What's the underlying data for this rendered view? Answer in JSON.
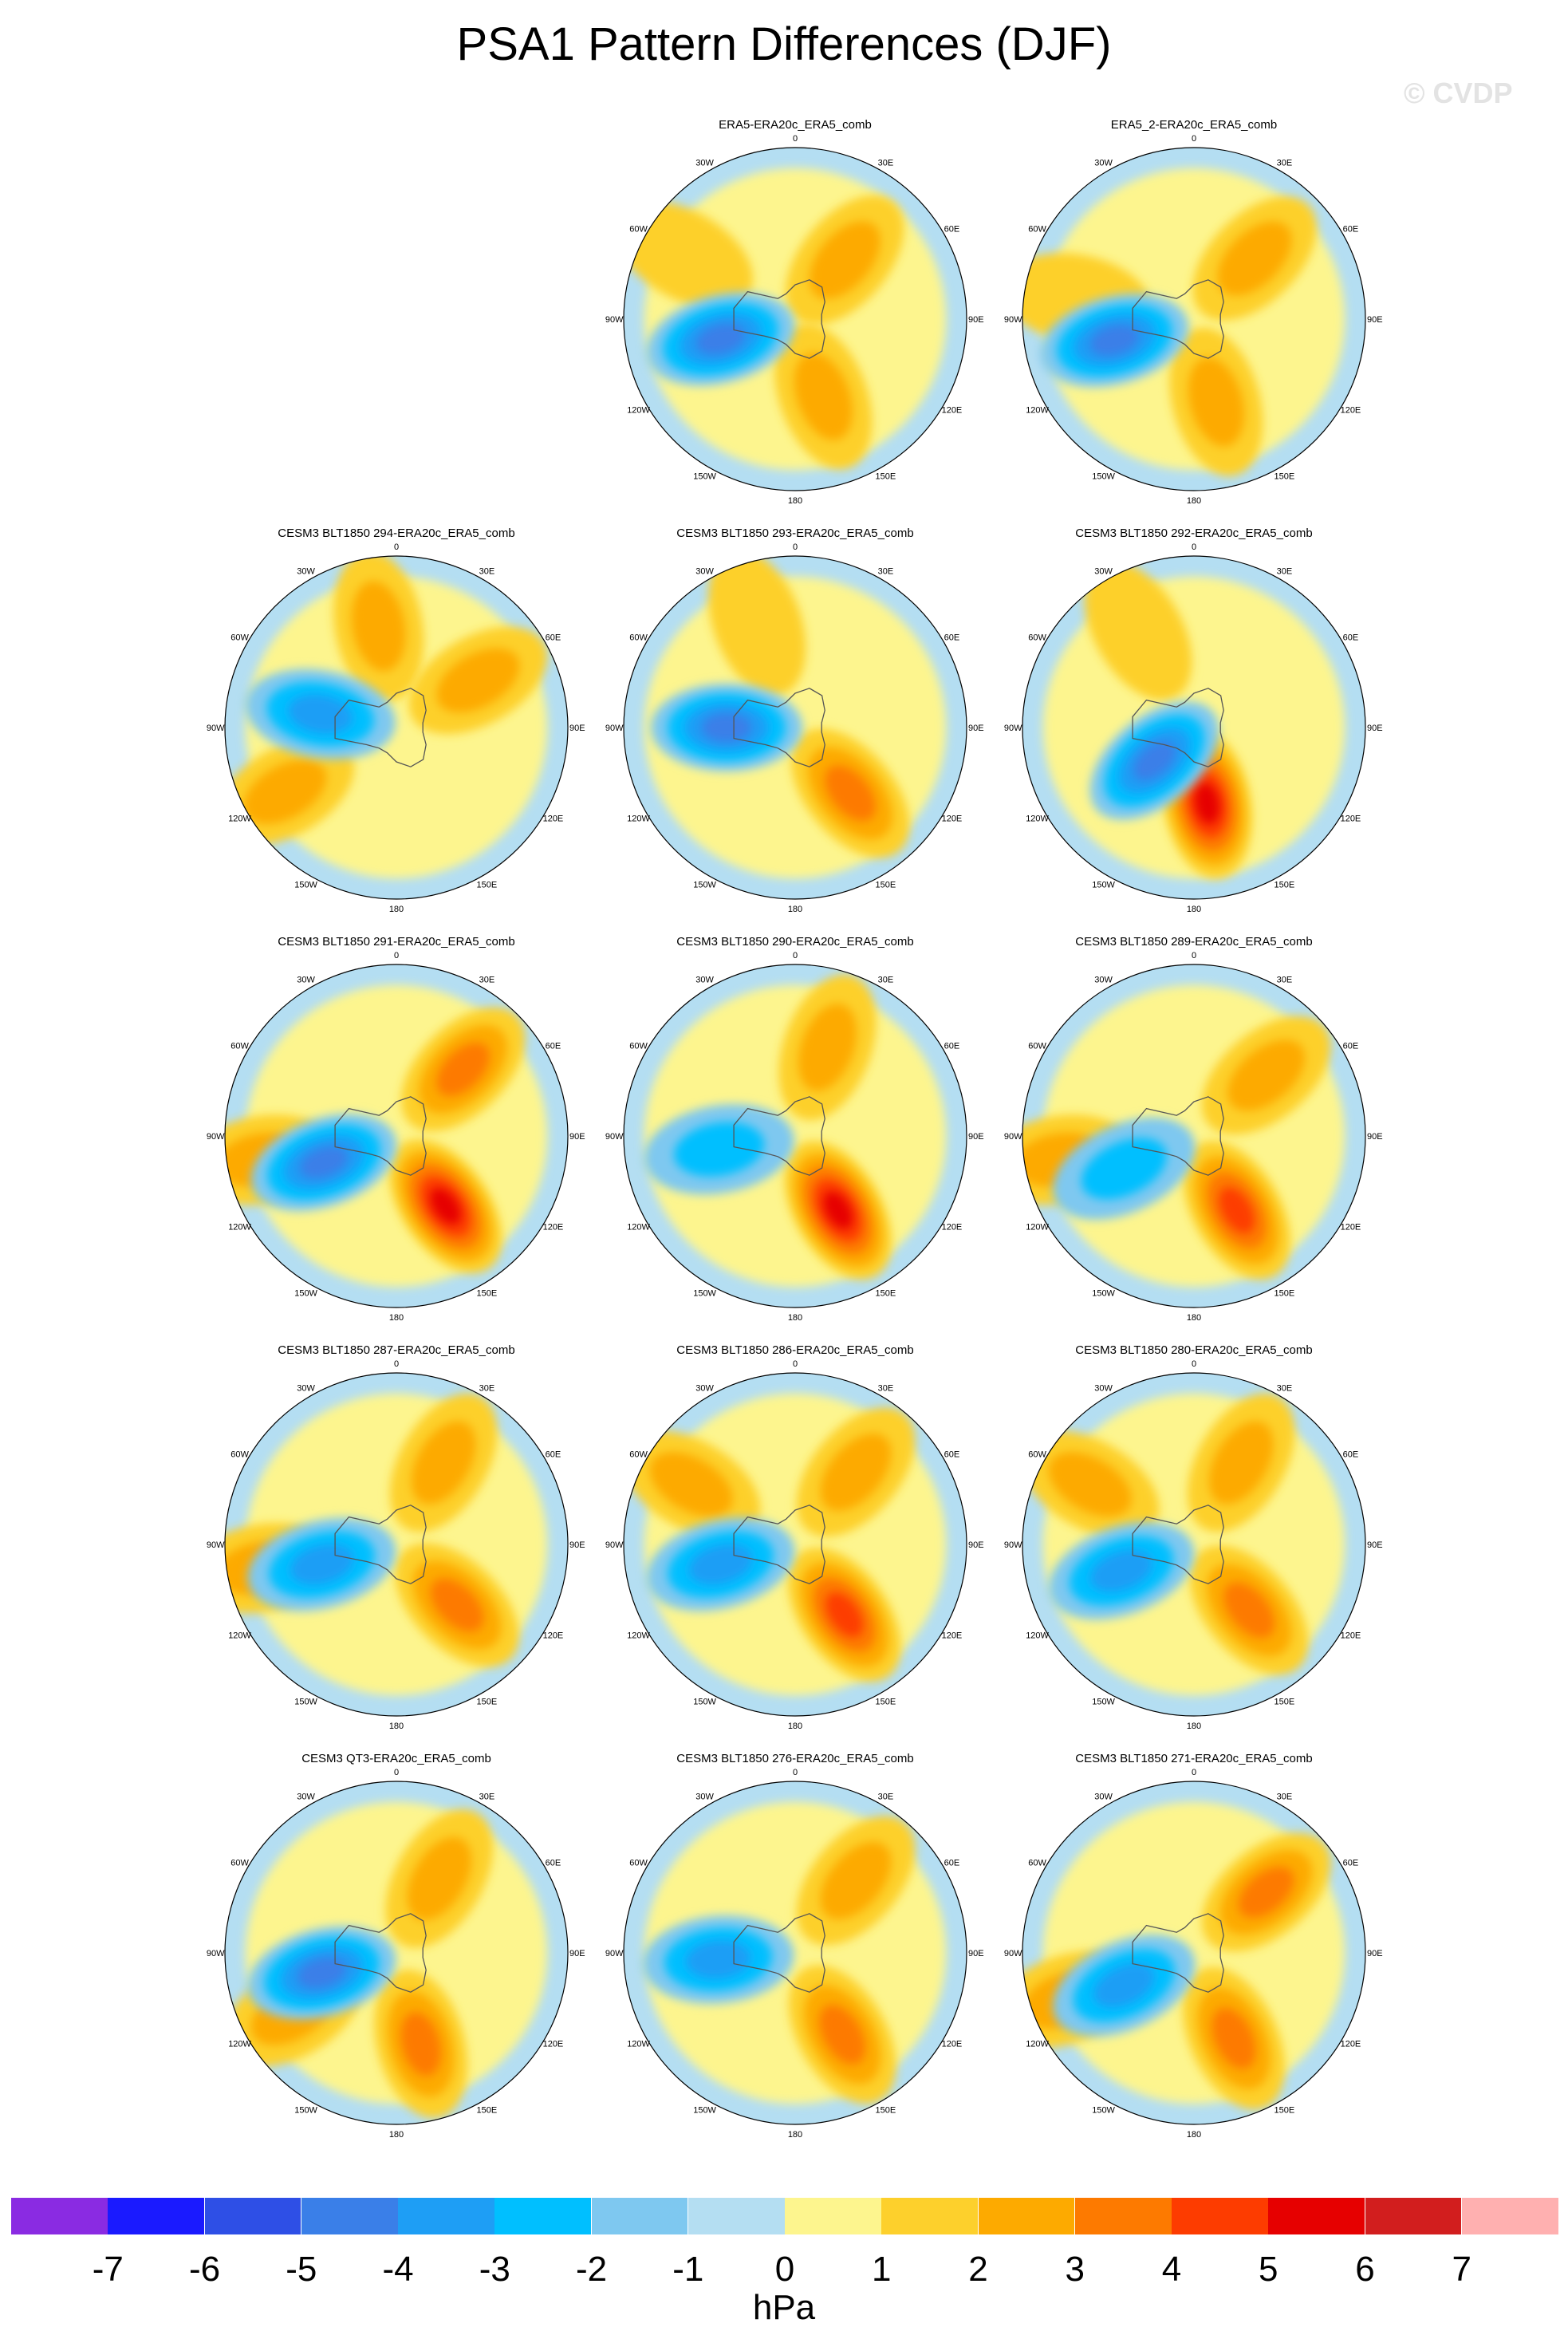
{
  "title": "PSA1 Pattern Differences (DJF)",
  "watermark": "© CVDP",
  "chart_data": {
    "type": "polar-contour-panels",
    "season": "DJF",
    "variable": "PSA1 pattern difference",
    "units": "hPa",
    "projection": "south-polar stereographic",
    "longitude_labels": [
      "0",
      "30E",
      "60E",
      "90E",
      "120E",
      "150E",
      "180",
      "150W",
      "120W",
      "90W",
      "60W",
      "30W"
    ],
    "contour_levels": [
      -7,
      -6,
      -5,
      -4,
      -3,
      -2,
      -1,
      0,
      1,
      2,
      3,
      4,
      5,
      6,
      7
    ],
    "colorbar_colors": [
      "#8a2be2",
      "#1a1aff",
      "#2e4fe6",
      "#3a7fe8",
      "#1e9ef5",
      "#00bfff",
      "#7ec8f0",
      "#b4def2",
      "#fdf58e",
      "#fdd02c",
      "#fdaa00",
      "#fd7a00",
      "#fd3c00",
      "#e60000",
      "#d21e1e",
      "#ffb0b0"
    ],
    "colorbar_tick_labels": [
      "-7",
      "-6",
      "-5",
      "-4",
      "-3",
      "-2",
      "-1",
      "0",
      "1",
      "2",
      "3",
      "4",
      "5",
      "6",
      "7"
    ],
    "panels": [
      {
        "title": "ERA5-ERA20c_ERA5_comb",
        "min_center": -4,
        "pos_anom": [
          {
            "lon": 40,
            "r": 0.45,
            "v": 2
          },
          {
            "lon": 160,
            "r": 0.48,
            "v": 2
          },
          {
            "lon": 300,
            "r": 0.75,
            "v": 1
          }
        ],
        "neg_anom": [
          {
            "lon": 255,
            "r": 0.45,
            "v": -4
          }
        ]
      },
      {
        "title": "ERA5_2-ERA20c_ERA5_comb",
        "min_center": -4,
        "pos_anom": [
          {
            "lon": 45,
            "r": 0.5,
            "v": 2
          },
          {
            "lon": 165,
            "r": 0.5,
            "v": 2
          },
          {
            "lon": 280,
            "r": 0.7,
            "v": 1
          }
        ],
        "neg_anom": [
          {
            "lon": 255,
            "r": 0.48,
            "v": -4
          }
        ]
      },
      {
        "title": "CESM3 BLT1850 294-ERA20c_ERA5_comb",
        "min_center": -3,
        "pos_anom": [
          {
            "lon": 350,
            "r": 0.6,
            "v": 2
          },
          {
            "lon": 60,
            "r": 0.55,
            "v": 2
          },
          {
            "lon": 240,
            "r": 0.75,
            "v": 2
          }
        ],
        "neg_anom": [
          {
            "lon": 280,
            "r": 0.45,
            "v": -3
          }
        ]
      },
      {
        "title": "CESM3 BLT1850 293-ERA20c_ERA5_comb",
        "min_center": -4,
        "pos_anom": [
          {
            "lon": 140,
            "r": 0.5,
            "v": 3
          },
          {
            "lon": 340,
            "r": 0.65,
            "v": 1
          }
        ],
        "neg_anom": [
          {
            "lon": 270,
            "r": 0.4,
            "v": -4
          }
        ]
      },
      {
        "title": "CESM3 BLT1850 292-ERA20c_ERA5_comb",
        "min_center": -4,
        "pos_anom": [
          {
            "lon": 170,
            "r": 0.45,
            "v": 5
          },
          {
            "lon": 330,
            "r": 0.65,
            "v": 1
          }
        ],
        "neg_anom": [
          {
            "lon": 230,
            "r": 0.3,
            "v": -4
          }
        ]
      },
      {
        "title": "CESM3 BLT1850 291-ERA20c_ERA5_comb",
        "min_center": -4,
        "pos_anom": [
          {
            "lon": 45,
            "r": 0.55,
            "v": 3
          },
          {
            "lon": 145,
            "r": 0.5,
            "v": 5
          },
          {
            "lon": 260,
            "r": 0.8,
            "v": 2
          }
        ],
        "neg_anom": [
          {
            "lon": 250,
            "r": 0.45,
            "v": -4
          }
        ]
      },
      {
        "title": "CESM3 BLT1850 290-ERA20c_ERA5_comb",
        "min_center": -2,
        "pos_anom": [
          {
            "lon": 150,
            "r": 0.5,
            "v": 5
          },
          {
            "lon": 20,
            "r": 0.55,
            "v": 2
          }
        ],
        "neg_anom": [
          {
            "lon": 260,
            "r": 0.45,
            "v": -2
          }
        ]
      },
      {
        "title": "CESM3 BLT1850 289-ERA20c_ERA5_comb",
        "min_center": -2,
        "pos_anom": [
          {
            "lon": 150,
            "r": 0.5,
            "v": 4
          },
          {
            "lon": 50,
            "r": 0.55,
            "v": 2
          },
          {
            "lon": 260,
            "r": 0.8,
            "v": 2
          }
        ],
        "neg_anom": [
          {
            "lon": 245,
            "r": 0.45,
            "v": -2
          }
        ]
      },
      {
        "title": "CESM3 BLT1850 287-ERA20c_ERA5_comb",
        "min_center": -3,
        "pos_anom": [
          {
            "lon": 135,
            "r": 0.5,
            "v": 3
          },
          {
            "lon": 30,
            "r": 0.55,
            "v": 2
          },
          {
            "lon": 260,
            "r": 0.8,
            "v": 2
          }
        ],
        "neg_anom": [
          {
            "lon": 255,
            "r": 0.45,
            "v": -3
          }
        ]
      },
      {
        "title": "CESM3 BLT1850 286-ERA20c_ERA5_comb",
        "min_center": -3,
        "pos_anom": [
          {
            "lon": 145,
            "r": 0.5,
            "v": 4
          },
          {
            "lon": 40,
            "r": 0.55,
            "v": 2
          },
          {
            "lon": 300,
            "r": 0.7,
            "v": 2
          }
        ],
        "neg_anom": [
          {
            "lon": 255,
            "r": 0.45,
            "v": -3
          }
        ]
      },
      {
        "title": "CESM3 BLT1850 280-ERA20c_ERA5_comb",
        "min_center": -3,
        "pos_anom": [
          {
            "lon": 140,
            "r": 0.5,
            "v": 3
          },
          {
            "lon": 30,
            "r": 0.55,
            "v": 2
          },
          {
            "lon": 300,
            "r": 0.7,
            "v": 2
          }
        ],
        "neg_anom": [
          {
            "lon": 250,
            "r": 0.45,
            "v": -3
          }
        ]
      },
      {
        "title": "CESM3 QT3-ERA20c_ERA5_comb",
        "min_center": -4,
        "pos_anom": [
          {
            "lon": 165,
            "r": 0.55,
            "v": 3
          },
          {
            "lon": 30,
            "r": 0.5,
            "v": 2
          },
          {
            "lon": 240,
            "r": 0.7,
            "v": 2
          }
        ],
        "neg_anom": [
          {
            "lon": 255,
            "r": 0.45,
            "v": -4
          }
        ]
      },
      {
        "title": "CESM3 BLT1850 276-ERA20c_ERA5_comb",
        "min_center": -3,
        "pos_anom": [
          {
            "lon": 150,
            "r": 0.55,
            "v": 3
          },
          {
            "lon": 40,
            "r": 0.55,
            "v": 2
          }
        ],
        "neg_anom": [
          {
            "lon": 265,
            "r": 0.45,
            "v": -3
          }
        ]
      },
      {
        "title": "CESM3 BLT1850 271-ERA20c_ERA5_comb",
        "min_center": -3,
        "pos_anom": [
          {
            "lon": 155,
            "r": 0.55,
            "v": 3
          },
          {
            "lon": 50,
            "r": 0.55,
            "v": 3
          },
          {
            "lon": 250,
            "r": 0.8,
            "v": 2
          }
        ],
        "neg_anom": [
          {
            "lon": 245,
            "r": 0.45,
            "v": -3
          }
        ]
      }
    ]
  }
}
